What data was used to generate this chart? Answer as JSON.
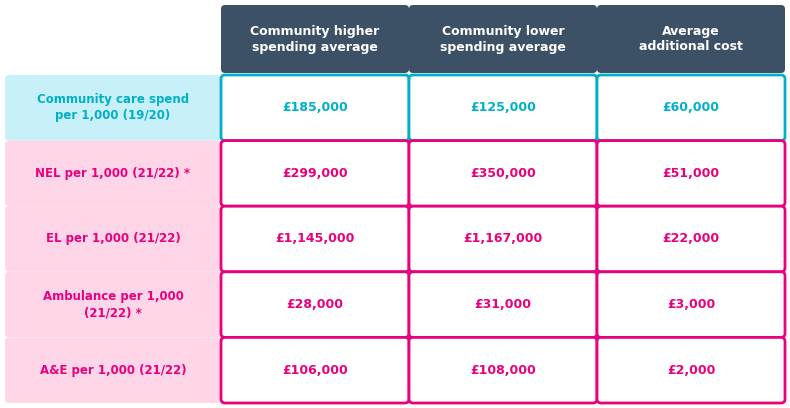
{
  "headers": [
    "Community higher\nspending average",
    "Community lower\nspending average",
    "Average\nadditional cost"
  ],
  "header_bg": "#3d5166",
  "header_text_color": "#ffffff",
  "rows": [
    {
      "label": "Community care spend\nper 1,000 (19/20)",
      "label_bg": "#c8f0f8",
      "label_text_color": "#00b0c8",
      "values": [
        "£185,000",
        "£125,000",
        "£60,000"
      ],
      "cell_border_color": "#00b0c8",
      "cell_text_color": "#00b0c8"
    },
    {
      "label": "NEL per 1,000 (21/22) *",
      "label_bg": "#ffd6e8",
      "label_text_color": "#e8007d",
      "values": [
        "£299,000",
        "£350,000",
        "£51,000"
      ],
      "cell_border_color": "#e8007d",
      "cell_text_color": "#e8007d"
    },
    {
      "label": "EL per 1,000 (21/22)",
      "label_bg": "#ffd6e8",
      "label_text_color": "#e8007d",
      "values": [
        "£1,145,000",
        "£1,167,000",
        "£22,000"
      ],
      "cell_border_color": "#e8007d",
      "cell_text_color": "#e8007d"
    },
    {
      "label": "Ambulance per 1,000\n(21/22) *",
      "label_bg": "#ffd6e8",
      "label_text_color": "#e8007d",
      "values": [
        "£28,000",
        "£31,000",
        "£3,000"
      ],
      "cell_border_color": "#e8007d",
      "cell_text_color": "#e8007d"
    },
    {
      "label": "A&E per 1,000 (21/22)",
      "label_bg": "#ffd6e8",
      "label_text_color": "#e8007d",
      "values": [
        "£106,000",
        "£108,000",
        "£2,000"
      ],
      "cell_border_color": "#e8007d",
      "cell_text_color": "#e8007d"
    }
  ],
  "background_color": "#ffffff",
  "fig_width": 7.9,
  "fig_height": 4.08,
  "header_fontsize": 9,
  "label_fontsize": 8.5,
  "value_fontsize": 9
}
